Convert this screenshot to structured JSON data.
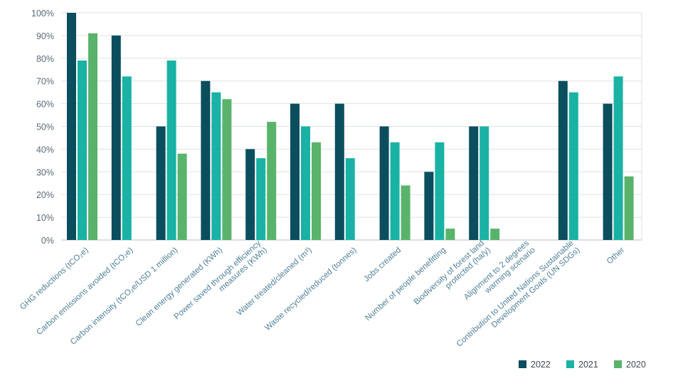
{
  "chart_data": {
    "type": "bar",
    "categories": [
      [
        "GHG reductions (tCO₂e)"
      ],
      [
        "Carbon emissions avoided (tCO₂e)"
      ],
      [
        "Carbon intensity (tCO₂e/USD 1 million)"
      ],
      [
        "Clean energy generated (KWh)"
      ],
      [
        "Power saved through efficiency",
        "measures (KWh)"
      ],
      [
        "Water treated/cleaned (m³)"
      ],
      [
        "Waste recycled/reduced (tonnes)"
      ],
      [
        "Jobs created"
      ],
      [
        "Number of people benefitting"
      ],
      [
        "Biodiversity of forest land",
        "protected (ha/y)"
      ],
      [
        "Alignment to 2 degrees",
        "warming scenario"
      ],
      [
        "Contribution to United Nations Sustainable",
        "Development Goals (UN SDGs)"
      ],
      [
        "Other"
      ]
    ],
    "series": [
      {
        "name": "2022",
        "color": "#0b4e5e",
        "values": [
          100,
          90,
          50,
          70,
          40,
          60,
          60,
          50,
          30,
          50,
          null,
          70,
          60
        ]
      },
      {
        "name": "2021",
        "color": "#19b2a5",
        "values": [
          79,
          72,
          79,
          65,
          36,
          50,
          36,
          43,
          43,
          50,
          null,
          65,
          72
        ]
      },
      {
        "name": "2020",
        "color": "#5ab36b",
        "values": [
          91,
          null,
          38,
          62,
          52,
          43,
          null,
          24,
          5,
          5,
          null,
          null,
          28
        ]
      }
    ],
    "series_by_category_note": "",
    "yticks": [
      "0%",
      "10%",
      "20%",
      "30%",
      "40%",
      "50%",
      "60%",
      "70%",
      "80%",
      "90%",
      "100%"
    ],
    "ylim": [
      0,
      100
    ],
    "grid": true,
    "legend_position": "bottom-right"
  }
}
